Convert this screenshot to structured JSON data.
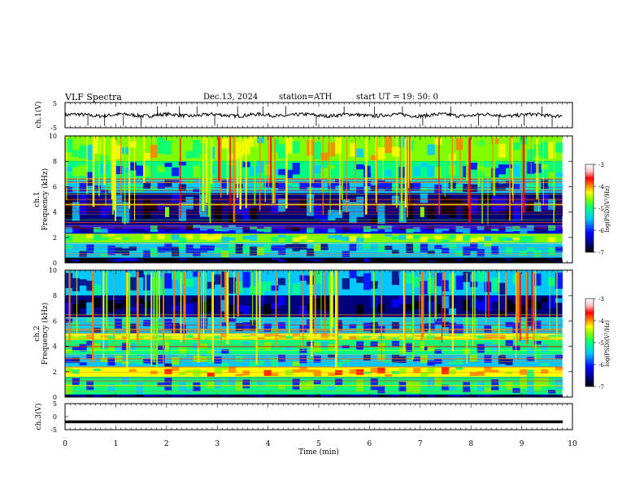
{
  "header": {
    "title": "VLF  Spectra",
    "date": "Dec.13, 2024",
    "station": "station=ATH",
    "start_label": "start  UT  =",
    "start_time": "19: 50: 0"
  },
  "colors": {
    "background": "#ffffff",
    "trace": "#000000",
    "colormap": [
      "#000000",
      "#00007f",
      "#0000ff",
      "#00c8ff",
      "#00ff80",
      "#80ff00",
      "#ffff00",
      "#ff8000",
      "#ff0000",
      "#ffc0c0",
      "#ffffff"
    ]
  },
  "chart_data": [
    {
      "id": "ch1-waveform",
      "type": "line",
      "ylabel": "ch.1(V)",
      "ylim": [
        -5,
        5
      ],
      "yticks": [
        "5",
        "-5"
      ],
      "xlim": [
        0,
        10
      ],
      "description_of_signal": "noisy trace near 0 V with sparse spikes",
      "baseline": 0,
      "spike_times": [
        0.45,
        0.78,
        1.15,
        1.5,
        1.82,
        2.25,
        2.6,
        2.95,
        3.4,
        3.9,
        4.35,
        4.95,
        5.5,
        6.1,
        6.65,
        7.05,
        7.6,
        8.15,
        8.55,
        9.05,
        9.4,
        9.6
      ]
    },
    {
      "id": "ch1-spectrogram",
      "type": "heatmap",
      "ylabel": "ch.1 Frequency (kHz)",
      "ylim": [
        0,
        10
      ],
      "yticks": [
        "0",
        "2",
        "4",
        "6",
        "8",
        "10"
      ],
      "xlim": [
        0,
        10
      ],
      "colorbar": {
        "label": "log(PSD)(V²/Hz)",
        "ticks": [
          "-3",
          "-4",
          "-5",
          "-6",
          "-7"
        ],
        "range": [
          -7,
          -3
        ]
      },
      "bands_khz": [
        {
          "from": 8.0,
          "to": 10.0,
          "level": -5.0
        },
        {
          "from": 6.6,
          "to": 8.0,
          "level": -5.6
        },
        {
          "from": 5.5,
          "to": 6.6,
          "level": -6.0
        },
        {
          "from": 3.0,
          "to": 5.5,
          "level": -6.4
        },
        {
          "from": 2.3,
          "to": 3.0,
          "level": -6.1
        },
        {
          "from": 1.6,
          "to": 2.3,
          "level": -5.2
        },
        {
          "from": 0.4,
          "to": 1.6,
          "level": -5.9
        },
        {
          "from": 0.0,
          "to": 0.4,
          "level": -6.9
        }
      ]
    },
    {
      "id": "ch2-spectrogram",
      "type": "heatmap",
      "ylabel": "ch.2 Frequency (kHz)",
      "ylim": [
        0,
        10
      ],
      "yticks": [
        "0",
        "2",
        "4",
        "6",
        "8",
        "10"
      ],
      "xlim": [
        0,
        10
      ],
      "colorbar": {
        "label": "log(PSD)(V²/Hz)",
        "ticks": [
          "-3",
          "-4",
          "-5",
          "-6",
          "-7"
        ],
        "range": [
          -7,
          -3
        ]
      },
      "bands_khz": [
        {
          "from": 8.0,
          "to": 10.0,
          "level": -6.0
        },
        {
          "from": 6.3,
          "to": 8.0,
          "level": -6.7
        },
        {
          "from": 5.0,
          "to": 6.3,
          "level": -6.0
        },
        {
          "from": 4.5,
          "to": 5.0,
          "level": -4.8
        },
        {
          "from": 3.4,
          "to": 4.5,
          "level": -5.6
        },
        {
          "from": 2.4,
          "to": 3.4,
          "level": -5.8
        },
        {
          "from": 1.6,
          "to": 2.4,
          "level": -4.6
        },
        {
          "from": 0.2,
          "to": 1.6,
          "level": -5.6
        },
        {
          "from": 0.0,
          "to": 0.2,
          "level": -6.8
        }
      ]
    },
    {
      "id": "ch3-waveform",
      "type": "line",
      "ylabel": "ch.3(V)",
      "ylim": [
        -5,
        5
      ],
      "yticks": [
        "5",
        "0",
        "-5"
      ],
      "xlim": [
        0,
        10
      ],
      "baseline": -2
    }
  ],
  "xaxis": {
    "label": "Time  (min)",
    "ticks": [
      "0",
      "1",
      "2",
      "3",
      "4",
      "5",
      "6",
      "7",
      "8",
      "9",
      "10"
    ],
    "xlim": [
      0,
      10
    ]
  }
}
